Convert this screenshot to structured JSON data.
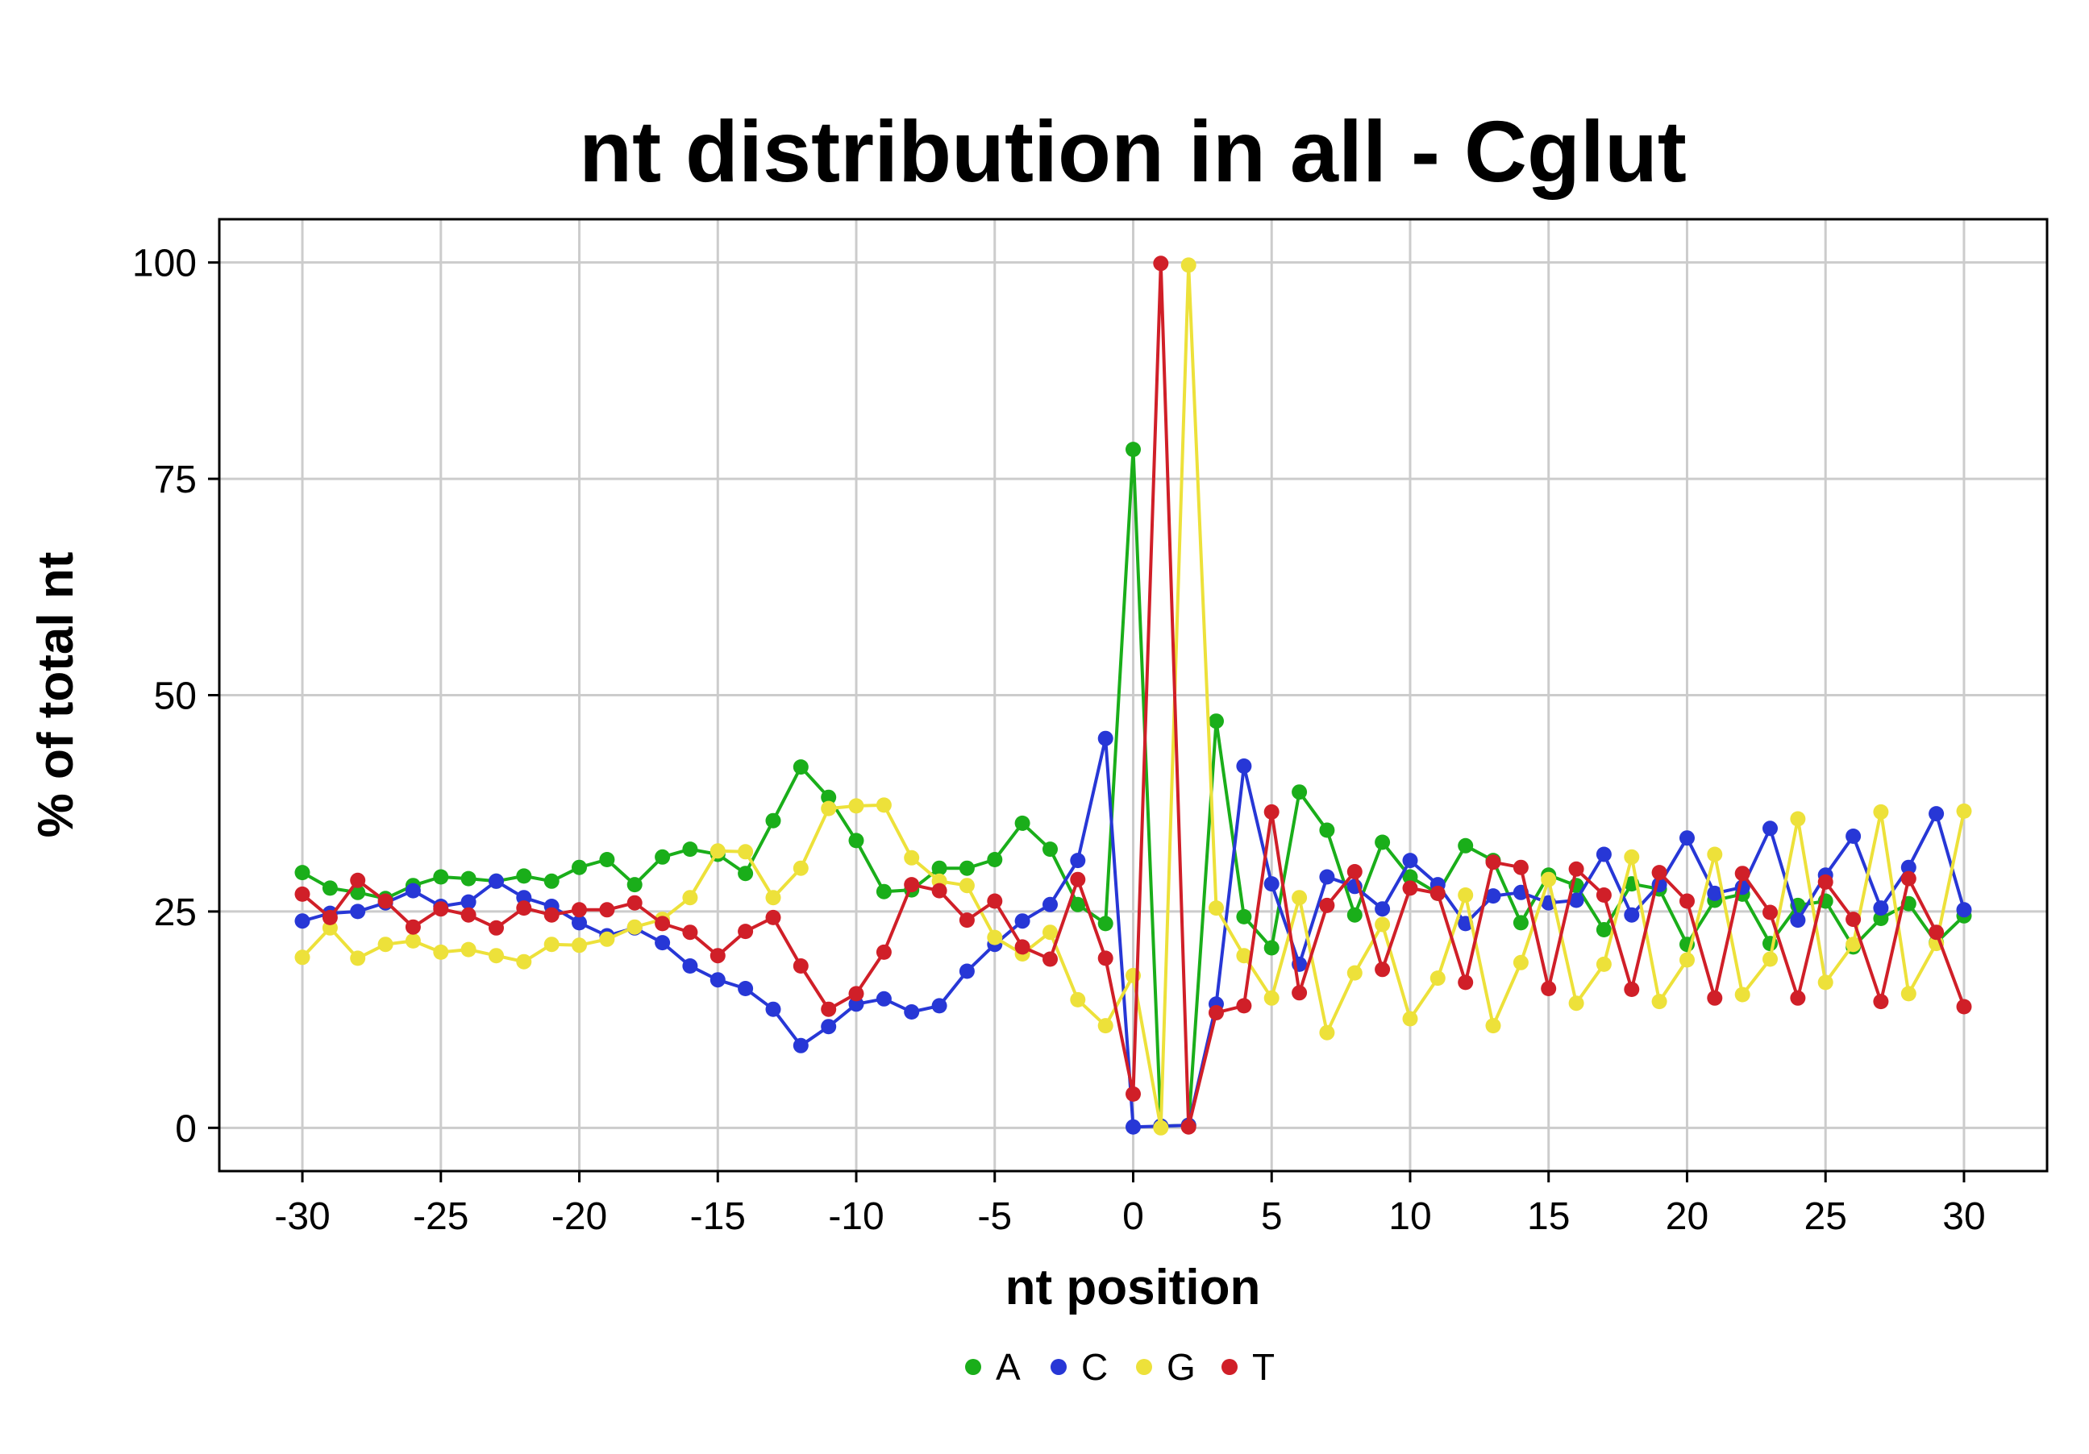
{
  "chart_data": {
    "type": "line",
    "title": "nt distribution in all - Cglut",
    "xlabel": "nt position",
    "ylabel": "% of total nt",
    "xlim": [
      -33,
      33
    ],
    "ylim": [
      -5,
      105
    ],
    "xticks": [
      -30,
      -25,
      -20,
      -15,
      -10,
      -5,
      0,
      5,
      10,
      15,
      20,
      25,
      30
    ],
    "xtick_labels": [
      "-30",
      "-25",
      "-20",
      "-15",
      "-10",
      "-5",
      "0",
      "5",
      "10",
      "15",
      "20",
      "25",
      "30"
    ],
    "yticks": [
      0,
      25,
      50,
      75,
      100
    ],
    "ytick_labels": [
      "0",
      "25",
      "50",
      "75",
      "100"
    ],
    "grid": true,
    "legend_position": "bottom",
    "x": [
      -30,
      -29,
      -28,
      -27,
      -26,
      -25,
      -24,
      -23,
      -22,
      -21,
      -20,
      -19,
      -18,
      -17,
      -16,
      -15,
      -14,
      -13,
      -12,
      -11,
      -10,
      -9,
      -8,
      -7,
      -6,
      -5,
      -4,
      -3,
      -2,
      -1,
      0,
      1,
      2,
      3,
      4,
      5,
      6,
      7,
      8,
      9,
      10,
      11,
      12,
      13,
      14,
      15,
      16,
      17,
      18,
      19,
      20,
      21,
      22,
      23,
      24,
      25,
      26,
      27,
      28,
      29,
      30
    ],
    "series": [
      {
        "name": "A",
        "color": "#1aae1a",
        "values": [
          29.5,
          27.7,
          27.2,
          26.5,
          28.0,
          29.0,
          28.8,
          28.5,
          29.1,
          28.5,
          30.1,
          31.0,
          28.1,
          31.3,
          32.2,
          31.6,
          29.4,
          35.5,
          41.7,
          38.2,
          33.2,
          27.3,
          27.5,
          30.0,
          30.0,
          31.0,
          35.2,
          32.2,
          25.8,
          23.6,
          78.4,
          0.2,
          0.3,
          47.0,
          24.4,
          20.8,
          38.8,
          34.4,
          24.6,
          33.0,
          29.0,
          27.1,
          32.6,
          30.9,
          23.7,
          29.2,
          28.0,
          22.9,
          28.2,
          27.6,
          21.2,
          26.3,
          27.0,
          21.3,
          25.7,
          26.2,
          20.9,
          24.2,
          25.9,
          21.4,
          24.5
        ]
      },
      {
        "name": "C",
        "color": "#2737d6",
        "values": [
          23.9,
          24.8,
          25.0,
          26.0,
          27.4,
          25.6,
          26.1,
          28.5,
          26.6,
          25.6,
          23.7,
          22.2,
          23.1,
          21.4,
          18.7,
          17.1,
          16.1,
          13.7,
          9.5,
          11.7,
          14.3,
          14.9,
          13.4,
          14.1,
          18.1,
          21.2,
          23.9,
          25.8,
          30.9,
          45.0,
          0.1,
          0.2,
          0.3,
          14.3,
          41.8,
          28.2,
          18.9,
          29.0,
          27.9,
          25.3,
          30.9,
          28.1,
          23.6,
          26.8,
          27.2,
          26.0,
          26.3,
          31.6,
          24.6,
          28.1,
          33.5,
          27.1,
          27.8,
          34.6,
          24.0,
          29.2,
          33.7,
          25.4,
          30.1,
          36.3,
          25.2
        ]
      },
      {
        "name": "G",
        "color": "#ede13a",
        "values": [
          19.7,
          23.1,
          19.6,
          21.2,
          21.6,
          20.3,
          20.6,
          19.9,
          19.2,
          21.2,
          21.1,
          21.8,
          23.2,
          24.1,
          26.6,
          32.0,
          31.9,
          26.6,
          30.0,
          36.9,
          37.2,
          37.3,
          31.2,
          28.5,
          28.0,
          22.0,
          20.1,
          22.6,
          14.8,
          11.8,
          17.6,
          0.0,
          99.7,
          25.4,
          19.9,
          15.0,
          26.6,
          11.0,
          17.9,
          23.5,
          12.6,
          17.3,
          26.9,
          11.8,
          19.1,
          28.7,
          14.4,
          18.9,
          31.3,
          14.6,
          19.4,
          31.6,
          15.4,
          19.5,
          35.7,
          16.8,
          21.2,
          36.5,
          15.5,
          21.3,
          36.6
        ]
      },
      {
        "name": "T",
        "color": "#d01f28",
        "values": [
          27.0,
          24.3,
          28.6,
          26.2,
          23.2,
          25.3,
          24.6,
          23.1,
          25.4,
          24.6,
          25.2,
          25.2,
          26.0,
          23.6,
          22.6,
          19.9,
          22.7,
          24.3,
          18.7,
          13.7,
          15.5,
          20.3,
          28.1,
          27.4,
          24.0,
          26.2,
          20.9,
          19.5,
          28.7,
          19.6,
          3.9,
          99.9,
          0.1,
          13.3,
          14.1,
          36.5,
          15.6,
          25.7,
          29.6,
          18.3,
          27.7,
          27.1,
          16.8,
          30.7,
          30.1,
          16.1,
          29.9,
          26.9,
          16.0,
          29.5,
          26.2,
          15.0,
          29.4,
          24.9,
          15.0,
          28.4,
          24.1,
          14.6,
          28.8,
          22.6,
          14.0
        ]
      }
    ]
  }
}
